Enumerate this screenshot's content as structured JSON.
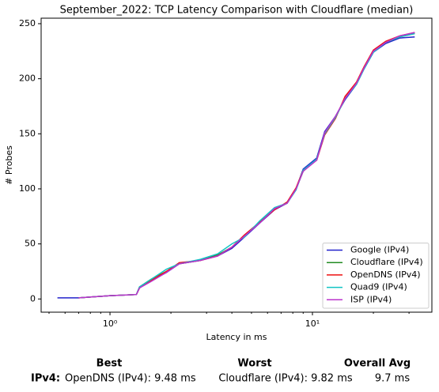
{
  "chart_data": {
    "type": "line",
    "title": "September_2022: TCP Latency Comparison with Cloudflare (median)",
    "xlabel": "Latency in ms",
    "ylabel": "# Probes",
    "xscale": "log",
    "x": [
      0.55,
      0.7,
      1.0,
      1.35,
      1.4,
      1.6,
      1.9,
      2.2,
      2.8,
      3.4,
      4.0,
      4.6,
      5.5,
      6.5,
      7.5,
      8.3,
      9.0,
      10.5,
      11.5,
      13,
      14.5,
      16.5,
      18,
      20,
      23,
      27,
      32
    ],
    "series": [
      {
        "name": "Google (IPv4)",
        "color": "#2222cc",
        "values": [
          1,
          1,
          3,
          4,
          10,
          17,
          24,
          32,
          35,
          39,
          46,
          56,
          69,
          81,
          87,
          100,
          118,
          128,
          152,
          166,
          181,
          195,
          209,
          224,
          232,
          237,
          238
        ]
      },
      {
        "name": "Cloudflare (IPv4)",
        "color": "#228b22",
        "values": [
          null,
          1,
          3,
          4,
          11,
          18,
          25,
          32,
          35,
          40,
          47,
          57,
          70,
          82,
          87,
          100,
          116,
          127,
          150,
          165,
          182,
          196,
          210,
          225,
          233,
          238,
          241
        ]
      },
      {
        "name": "OpenDNS (IPv4)",
        "color": "#ee1111",
        "values": [
          null,
          1,
          3,
          4,
          10,
          17,
          25,
          33,
          35,
          39,
          47,
          58,
          70,
          81,
          88,
          101,
          117,
          126,
          149,
          164,
          184,
          197,
          211,
          226,
          234,
          239,
          242
        ]
      },
      {
        "name": "Quad9 (IPv4)",
        "color": "#11c4c4",
        "values": [
          null,
          1,
          3,
          4,
          11,
          18,
          27,
          32,
          36,
          41,
          50,
          56,
          71,
          83,
          87,
          99,
          117,
          127,
          150,
          165,
          182,
          195,
          209,
          224,
          233,
          238,
          241
        ]
      },
      {
        "name": "ISP (IPv4)",
        "color": "#bb33cc",
        "values": [
          null,
          1,
          3,
          4,
          10,
          16,
          24,
          32,
          35,
          39,
          47,
          57,
          69,
          82,
          87,
          100,
          116,
          126,
          151,
          166,
          182,
          196,
          210,
          225,
          233,
          239,
          242
        ]
      }
    ],
    "xlim": [
      0.457,
      38.9
    ],
    "xticks": [
      {
        "value": 1,
        "label": "10⁰"
      },
      {
        "value": 10,
        "label": "10¹"
      }
    ],
    "xminorticks": [
      0.5,
      0.6,
      0.7,
      0.8,
      0.9,
      2,
      3,
      4,
      5,
      6,
      7,
      8,
      9,
      20,
      30
    ],
    "ylim": [
      -12,
      255
    ],
    "yticks": [
      0,
      50,
      100,
      150,
      200,
      250
    ],
    "legend": "lower right"
  },
  "footer": {
    "headers": [
      "Best",
      "Worst",
      "Overall Avg"
    ],
    "row_label": "IPv4:",
    "best": "OpenDNS (IPv4): 9.48 ms",
    "worst": "Cloudflare (IPv4): 9.82 ms",
    "avg": "9.7 ms"
  }
}
